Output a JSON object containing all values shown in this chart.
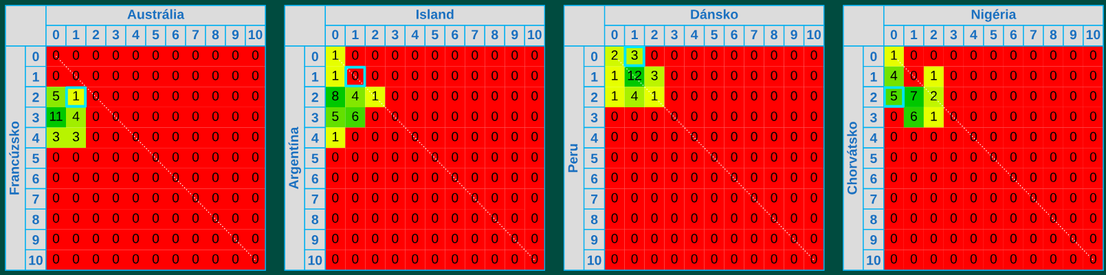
{
  "chart_data": [
    {
      "type": "heatmap",
      "xlabel": "Austrália",
      "ylabel": "Francúzsko",
      "categories": [
        "0",
        "1",
        "2",
        "3",
        "4",
        "5",
        "6",
        "7",
        "8",
        "9",
        "10"
      ],
      "y_categories": [
        "0",
        "1",
        "2",
        "3",
        "4",
        "5",
        "6",
        "7",
        "8",
        "9",
        "10"
      ],
      "cells": [
        [
          0,
          0,
          0,
          0,
          0,
          0,
          0,
          0,
          0,
          0,
          0
        ],
        [
          0,
          0,
          0,
          0,
          0,
          0,
          0,
          0,
          0,
          0,
          0
        ],
        [
          5,
          1,
          0,
          0,
          0,
          0,
          0,
          0,
          0,
          0,
          0
        ],
        [
          11,
          4,
          0,
          0,
          0,
          0,
          0,
          0,
          0,
          0,
          0
        ],
        [
          3,
          3,
          0,
          0,
          0,
          0,
          0,
          0,
          0,
          0,
          0
        ],
        [
          0,
          0,
          0,
          0,
          0,
          0,
          0,
          0,
          0,
          0,
          0
        ],
        [
          0,
          0,
          0,
          0,
          0,
          0,
          0,
          0,
          0,
          0,
          0
        ],
        [
          0,
          0,
          0,
          0,
          0,
          0,
          0,
          0,
          0,
          0,
          0
        ],
        [
          0,
          0,
          0,
          0,
          0,
          0,
          0,
          0,
          0,
          0,
          0
        ],
        [
          0,
          0,
          0,
          0,
          0,
          0,
          0,
          0,
          0,
          0,
          0
        ],
        [
          0,
          0,
          0,
          0,
          0,
          0,
          0,
          0,
          0,
          0,
          0
        ]
      ],
      "data_labels": true,
      "series": [
        {
          "type": "line",
          "color": "#ffffff",
          "line_style": "dotted",
          "x": [
            "0",
            "10"
          ],
          "values": [
            0,
            10
          ],
          "value_labels": [
            null,
            null
          ]
        },
        {
          "type": "scatter",
          "color": "#00e5ff",
          "marker": "square",
          "x": [
            "1"
          ],
          "values": [
            2
          ],
          "value_labels": [
            null
          ]
        }
      ]
    },
    {
      "type": "heatmap",
      "xlabel": "Island",
      "ylabel": "Argentína",
      "categories": [
        "0",
        "1",
        "2",
        "3",
        "4",
        "5",
        "6",
        "7",
        "8",
        "9",
        "10"
      ],
      "y_categories": [
        "0",
        "1",
        "2",
        "3",
        "4",
        "5",
        "6",
        "7",
        "8",
        "9",
        "10"
      ],
      "cells": [
        [
          1,
          0,
          0,
          0,
          0,
          0,
          0,
          0,
          0,
          0,
          0
        ],
        [
          1,
          0,
          0,
          0,
          0,
          0,
          0,
          0,
          0,
          0,
          0
        ],
        [
          8,
          4,
          1,
          0,
          0,
          0,
          0,
          0,
          0,
          0,
          0
        ],
        [
          5,
          6,
          0,
          0,
          0,
          0,
          0,
          0,
          0,
          0,
          0
        ],
        [
          1,
          0,
          0,
          0,
          0,
          0,
          0,
          0,
          0,
          0,
          0
        ],
        [
          0,
          0,
          0,
          0,
          0,
          0,
          0,
          0,
          0,
          0,
          0
        ],
        [
          0,
          0,
          0,
          0,
          0,
          0,
          0,
          0,
          0,
          0,
          0
        ],
        [
          0,
          0,
          0,
          0,
          0,
          0,
          0,
          0,
          0,
          0,
          0
        ],
        [
          0,
          0,
          0,
          0,
          0,
          0,
          0,
          0,
          0,
          0,
          0
        ],
        [
          0,
          0,
          0,
          0,
          0,
          0,
          0,
          0,
          0,
          0,
          0
        ],
        [
          0,
          0,
          0,
          0,
          0,
          0,
          0,
          0,
          0,
          0,
          0
        ]
      ],
      "data_labels": true,
      "series": [
        {
          "type": "line",
          "color": "#ffffff",
          "line_style": "dotted",
          "x": [
            "0",
            "10"
          ],
          "values": [
            0,
            10
          ],
          "value_labels": [
            null,
            null
          ]
        },
        {
          "type": "scatter",
          "color": "#00e5ff",
          "marker": "square",
          "x": [
            "1"
          ],
          "values": [
            1
          ],
          "value_labels": [
            null
          ]
        }
      ]
    },
    {
      "type": "heatmap",
      "xlabel": "Dánsko",
      "ylabel": "Peru",
      "categories": [
        "0",
        "1",
        "2",
        "3",
        "4",
        "5",
        "6",
        "7",
        "8",
        "9",
        "10"
      ],
      "y_categories": [
        "0",
        "1",
        "2",
        "3",
        "4",
        "5",
        "6",
        "7",
        "8",
        "9",
        "10"
      ],
      "cells": [
        [
          2,
          3,
          0,
          0,
          0,
          0,
          0,
          0,
          0,
          0,
          0
        ],
        [
          1,
          12,
          3,
          0,
          0,
          0,
          0,
          0,
          0,
          0,
          0
        ],
        [
          1,
          4,
          1,
          0,
          0,
          0,
          0,
          0,
          0,
          0,
          0
        ],
        [
          0,
          0,
          0,
          0,
          0,
          0,
          0,
          0,
          0,
          0,
          0
        ],
        [
          0,
          0,
          0,
          0,
          0,
          0,
          0,
          0,
          0,
          0,
          0
        ],
        [
          0,
          0,
          0,
          0,
          0,
          0,
          0,
          0,
          0,
          0,
          0
        ],
        [
          0,
          0,
          0,
          0,
          0,
          0,
          0,
          0,
          0,
          0,
          0
        ],
        [
          0,
          0,
          0,
          0,
          0,
          0,
          0,
          0,
          0,
          0,
          0
        ],
        [
          0,
          0,
          0,
          0,
          0,
          0,
          0,
          0,
          0,
          0,
          0
        ],
        [
          0,
          0,
          0,
          0,
          0,
          0,
          0,
          0,
          0,
          0,
          0
        ],
        [
          0,
          0,
          0,
          0,
          0,
          0,
          0,
          0,
          0,
          0,
          0
        ]
      ],
      "data_labels": true,
      "series": [
        {
          "type": "line",
          "color": "#ffffff",
          "line_style": "dotted",
          "x": [
            "0",
            "10"
          ],
          "values": [
            0,
            10
          ],
          "value_labels": [
            null,
            null
          ]
        },
        {
          "type": "scatter",
          "color": "#00e5ff",
          "marker": "square",
          "x": [
            "1"
          ],
          "values": [
            0
          ],
          "value_labels": [
            null
          ]
        }
      ]
    },
    {
      "type": "heatmap",
      "xlabel": "Nigéria",
      "ylabel": "Chorvátsko",
      "categories": [
        "0",
        "1",
        "2",
        "3",
        "4",
        "5",
        "6",
        "7",
        "8",
        "9",
        "10"
      ],
      "y_categories": [
        "0",
        "1",
        "2",
        "3",
        "4",
        "5",
        "6",
        "7",
        "8",
        "9",
        "10"
      ],
      "cells": [
        [
          1,
          0,
          0,
          0,
          0,
          0,
          0,
          0,
          0,
          0,
          0
        ],
        [
          4,
          0,
          1,
          0,
          0,
          0,
          0,
          0,
          0,
          0,
          0
        ],
        [
          5,
          7,
          2,
          0,
          0,
          0,
          0,
          0,
          0,
          0,
          0
        ],
        [
          0,
          6,
          1,
          0,
          0,
          0,
          0,
          0,
          0,
          0,
          0
        ],
        [
          0,
          0,
          0,
          0,
          0,
          0,
          0,
          0,
          0,
          0,
          0
        ],
        [
          0,
          0,
          0,
          0,
          0,
          0,
          0,
          0,
          0,
          0,
          0
        ],
        [
          0,
          0,
          0,
          0,
          0,
          0,
          0,
          0,
          0,
          0,
          0
        ],
        [
          0,
          0,
          0,
          0,
          0,
          0,
          0,
          0,
          0,
          0,
          0
        ],
        [
          0,
          0,
          0,
          0,
          0,
          0,
          0,
          0,
          0,
          0,
          0
        ],
        [
          0,
          0,
          0,
          0,
          0,
          0,
          0,
          0,
          0,
          0,
          0
        ],
        [
          0,
          0,
          0,
          0,
          0,
          0,
          0,
          0,
          0,
          0,
          0
        ]
      ],
      "data_labels": true,
      "series": [
        {
          "type": "line",
          "color": "#ffffff",
          "line_style": "dotted",
          "x": [
            "0",
            "10"
          ],
          "values": [
            0,
            10
          ],
          "value_labels": [
            null,
            null
          ]
        },
        {
          "type": "scatter",
          "color": "#00e5ff",
          "marker": "square",
          "x": [
            "0"
          ],
          "values": [
            2
          ],
          "value_labels": [
            null
          ]
        }
      ]
    }
  ]
}
